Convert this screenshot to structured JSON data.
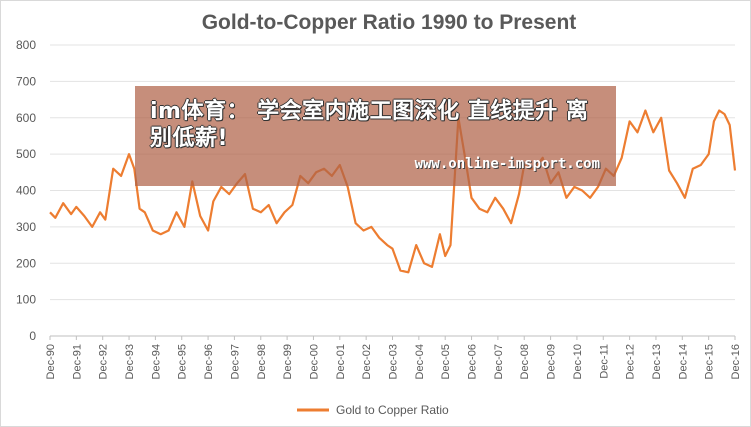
{
  "chart_data": {
    "type": "line",
    "title": "Gold-to-Copper  Ratio  1990 to Present",
    "xlabel": "",
    "ylabel": "",
    "ylim": [
      0,
      800
    ],
    "yticks": [
      0,
      100,
      200,
      300,
      400,
      500,
      600,
      700,
      800
    ],
    "xticks": [
      "Dec-90",
      "Dec-91",
      "Dec-92",
      "Dec-93",
      "Dec-94",
      "Dec-95",
      "Dec-96",
      "Dec-97",
      "Dec-98",
      "Dec-99",
      "Dec-00",
      "Dec-01",
      "Dec-02",
      "Dec-03",
      "Dec-04",
      "Dec-05",
      "Dec-06",
      "Dec-07",
      "Dec-08",
      "Dec-09",
      "Dec-10",
      "Dec-11",
      "Dec-12",
      "Dec-13",
      "Dec-14",
      "Dec-15",
      "Dec-16"
    ],
    "grid": "horizontal",
    "legend_position": "bottom",
    "series": [
      {
        "name": "Gold to Copper Ratio",
        "color": "#ED7D31",
        "x": [
          0,
          0.2,
          0.5,
          0.8,
          1.0,
          1.3,
          1.6,
          1.9,
          2.1,
          2.4,
          2.7,
          3.0,
          3.2,
          3.4,
          3.6,
          3.9,
          4.2,
          4.5,
          4.8,
          5.1,
          5.4,
          5.7,
          6.0,
          6.2,
          6.5,
          6.8,
          7.1,
          7.4,
          7.7,
          8.0,
          8.3,
          8.6,
          8.9,
          9.2,
          9.5,
          9.8,
          10.1,
          10.4,
          10.7,
          11.0,
          11.3,
          11.6,
          11.9,
          12.2,
          12.5,
          12.8,
          13.0,
          13.3,
          13.6,
          13.9,
          14.2,
          14.5,
          14.8,
          15.0,
          15.2,
          15.5,
          15.8,
          16.0,
          16.3,
          16.6,
          16.9,
          17.2,
          17.5,
          17.8,
          18.0,
          18.2,
          18.4,
          18.7,
          19.0,
          19.3,
          19.6,
          19.9,
          20.2,
          20.5,
          20.8,
          21.1,
          21.4,
          21.7,
          22.0,
          22.3,
          22.6,
          22.9,
          23.2,
          23.5,
          23.8,
          24.1,
          24.4,
          24.7,
          25.0,
          25.2,
          25.4,
          25.6,
          25.8,
          26.0
        ],
        "values": [
          340,
          325,
          365,
          335,
          355,
          330,
          300,
          340,
          320,
          460,
          440,
          500,
          460,
          350,
          340,
          290,
          280,
          290,
          340,
          300,
          425,
          330,
          290,
          370,
          410,
          390,
          420,
          445,
          350,
          340,
          360,
          310,
          340,
          360,
          440,
          420,
          450,
          460,
          440,
          470,
          410,
          310,
          290,
          300,
          270,
          250,
          240,
          180,
          175,
          250,
          200,
          190,
          280,
          220,
          250,
          600,
          470,
          380,
          350,
          340,
          380,
          350,
          310,
          390,
          470,
          460,
          460,
          490,
          420,
          450,
          380,
          410,
          400,
          380,
          410,
          460,
          440,
          490,
          590,
          560,
          620,
          560,
          600,
          455,
          420,
          380,
          460,
          470,
          500,
          590,
          620,
          610,
          580,
          455
        ]
      }
    ]
  },
  "overlay": {
    "title": "im体育： 学会室内施工图深化 直线提升 离别低薪!",
    "url": "www.online-imsport.com"
  }
}
